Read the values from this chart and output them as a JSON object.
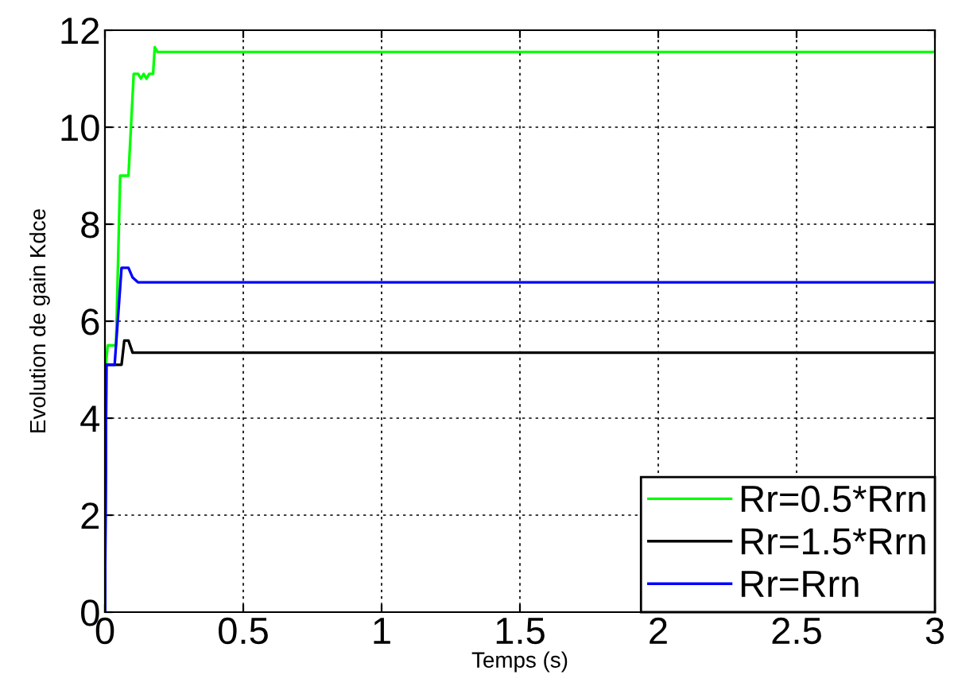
{
  "chart_data": {
    "type": "line",
    "xlabel": "Temps (s)",
    "ylabel": "Evolution de gain Kdce",
    "xlim": [
      0,
      3
    ],
    "ylim": [
      0,
      12
    ],
    "xticks": [
      0,
      0.5,
      1,
      1.5,
      2,
      2.5,
      3
    ],
    "yticks": [
      0,
      2,
      4,
      6,
      8,
      10,
      12
    ],
    "grid": true,
    "legend": "bottom right",
    "line_style": "solid",
    "marker": "none",
    "series": [
      {
        "name": "Rr=0.5*Rrn",
        "color": "#00ff00",
        "x": [
          0,
          0.003,
          0.01,
          0.04,
          0.055,
          0.085,
          0.104,
          0.12,
          0.13,
          0.14,
          0.15,
          0.16,
          0.174,
          0.18,
          0.19,
          3
        ],
        "values": [
          0,
          5.1,
          5.5,
          5.5,
          9.0,
          9.0,
          11.1,
          11.1,
          11.0,
          11.1,
          11.0,
          11.1,
          11.1,
          11.65,
          11.55,
          11.55
        ]
      },
      {
        "name": "Rr=1.5*Rrn",
        "color": "#000000",
        "x": [
          0,
          0.005,
          0.06,
          0.07,
          0.085,
          0.1,
          3
        ],
        "values": [
          0,
          5.1,
          5.1,
          5.6,
          5.6,
          5.35,
          5.35
        ]
      },
      {
        "name": "Rr=Rrn",
        "color": "#0000ff",
        "x": [
          0,
          0.005,
          0.035,
          0.06,
          0.085,
          0.1,
          0.12,
          3
        ],
        "values": [
          0,
          5.1,
          5.1,
          7.1,
          7.1,
          6.9,
          6.8,
          6.8
        ]
      }
    ]
  }
}
